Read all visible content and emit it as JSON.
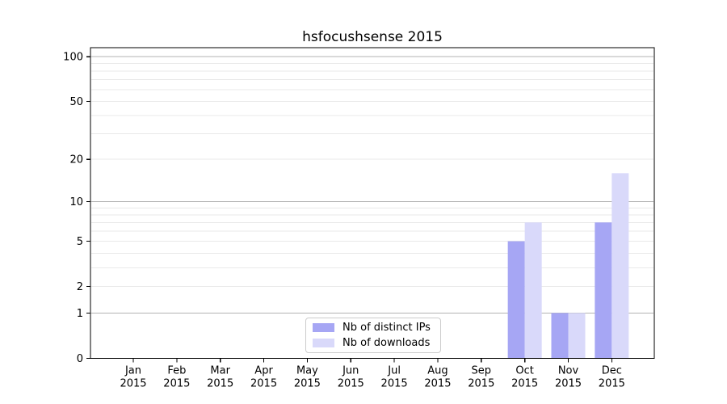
{
  "chart_data": {
    "type": "bar",
    "title": "hsfocushsense 2015",
    "categories": [
      "Jan",
      "Feb",
      "Mar",
      "Apr",
      "May",
      "Jun",
      "Jul",
      "Aug",
      "Sep",
      "Oct",
      "Nov",
      "Dec"
    ],
    "year_label": "2015",
    "series": [
      {
        "name": "Nb of distinct IPs",
        "color": "#a6a6f4",
        "values": [
          0,
          0,
          0,
          0,
          0,
          0,
          0,
          0,
          0,
          5,
          1,
          7
        ]
      },
      {
        "name": "Nb of downloads",
        "color": "#d9d9fa",
        "values": [
          0,
          0,
          0,
          0,
          0,
          0,
          0,
          0,
          0,
          7,
          1,
          16
        ]
      }
    ],
    "yscale": "log1p",
    "ylim": [
      0,
      115
    ],
    "yticks": [
      0,
      1,
      2,
      5,
      10,
      20,
      50,
      100
    ],
    "grid": {
      "major_lines": [
        1,
        10,
        100
      ],
      "minor_lines": [
        2,
        3,
        4,
        5,
        6,
        7,
        8,
        9,
        20,
        30,
        40,
        50,
        60,
        70,
        80,
        90
      ],
      "major_color": "#b3b3b3",
      "minor_color": "#e9e9e9",
      "visible": true
    },
    "legend_position": "lower center",
    "axis_color": "#000000",
    "text_color": "#000000",
    "background_color": "#ffffff"
  }
}
